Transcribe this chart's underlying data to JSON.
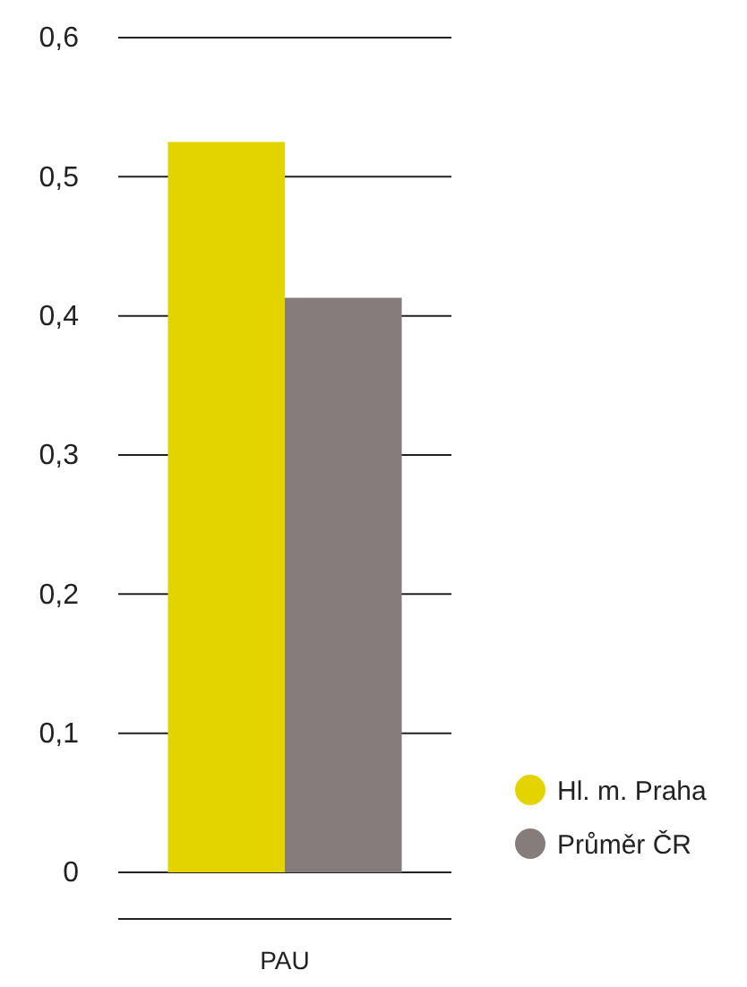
{
  "chart_data": {
    "type": "bar",
    "categories": [
      "PAU"
    ],
    "series": [
      {
        "name": "Hl. m. Praha",
        "color": "#e3d400",
        "values": [
          0.525
        ]
      },
      {
        "name": "Průměr ČR",
        "color": "#857d7c",
        "values": [
          0.413
        ]
      }
    ],
    "ylim": [
      0,
      0.6
    ],
    "yticks": [
      {
        "value": 0,
        "label": "0"
      },
      {
        "value": 0.1,
        "label": "0,1"
      },
      {
        "value": 0.2,
        "label": "0,2"
      },
      {
        "value": 0.3,
        "label": "0,3"
      },
      {
        "value": 0.4,
        "label": "0,4"
      },
      {
        "value": 0.5,
        "label": "0,5"
      },
      {
        "value": 0.6,
        "label": "0,6"
      }
    ],
    "grid": "y",
    "legend": "right"
  }
}
